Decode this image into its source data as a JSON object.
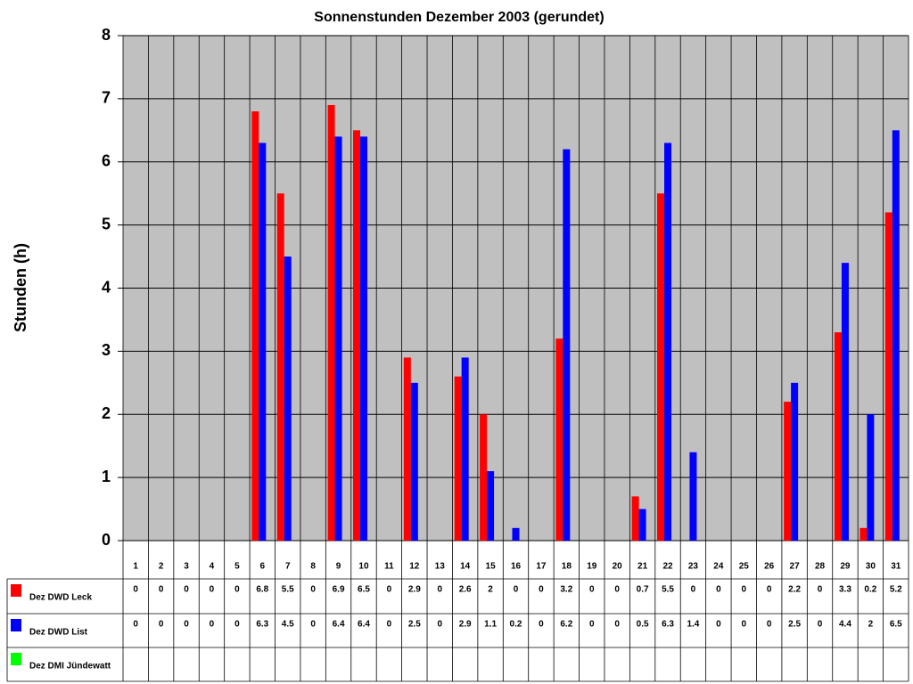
{
  "chart_data": {
    "type": "bar",
    "title": "Sonnenstunden Dezember 2003 (gerundet)",
    "y_label": "Stunden (h)",
    "categories": [
      "1",
      "2",
      "3",
      "4",
      "5",
      "6",
      "7",
      "8",
      "9",
      "10",
      "11",
      "12",
      "13",
      "14",
      "15",
      "16",
      "17",
      "18",
      "19",
      "20",
      "21",
      "22",
      "23",
      "24",
      "25",
      "26",
      "27",
      "28",
      "29",
      "30",
      "31"
    ],
    "series": [
      {
        "name": "Dez DWD Leck",
        "color": "#ff0000",
        "values": [
          0,
          0,
          0,
          0,
          0,
          6.8,
          5.5,
          0,
          6.9,
          6.5,
          0,
          2.9,
          0,
          2.6,
          2,
          0,
          0,
          3.2,
          0,
          0,
          0.7,
          5.5,
          0,
          0,
          0,
          0,
          2.2,
          0,
          3.3,
          0.2,
          5.2
        ]
      },
      {
        "name": "Dez DWD List",
        "color": "#0000ff",
        "values": [
          0,
          0,
          0,
          0,
          0,
          6.3,
          4.5,
          0,
          6.4,
          6.4,
          0,
          2.5,
          0,
          2.9,
          1.1,
          0.2,
          0,
          6.2,
          0,
          0,
          0.5,
          6.3,
          1.4,
          0,
          0,
          0,
          2.5,
          0,
          4.4,
          2,
          6.5
        ]
      },
      {
        "name": "Dez DMI Jündewatt",
        "color": "#00ff00",
        "values": [
          null,
          null,
          null,
          null,
          null,
          null,
          null,
          null,
          null,
          null,
          null,
          null,
          null,
          null,
          null,
          null,
          null,
          null,
          null,
          null,
          null,
          null,
          null,
          null,
          null,
          null,
          null,
          null,
          null,
          null,
          null
        ]
      }
    ],
    "ylim": [
      0,
      8
    ],
    "yticks": [
      0,
      1,
      2,
      3,
      4,
      5,
      6,
      7,
      8
    ],
    "grid": true
  }
}
